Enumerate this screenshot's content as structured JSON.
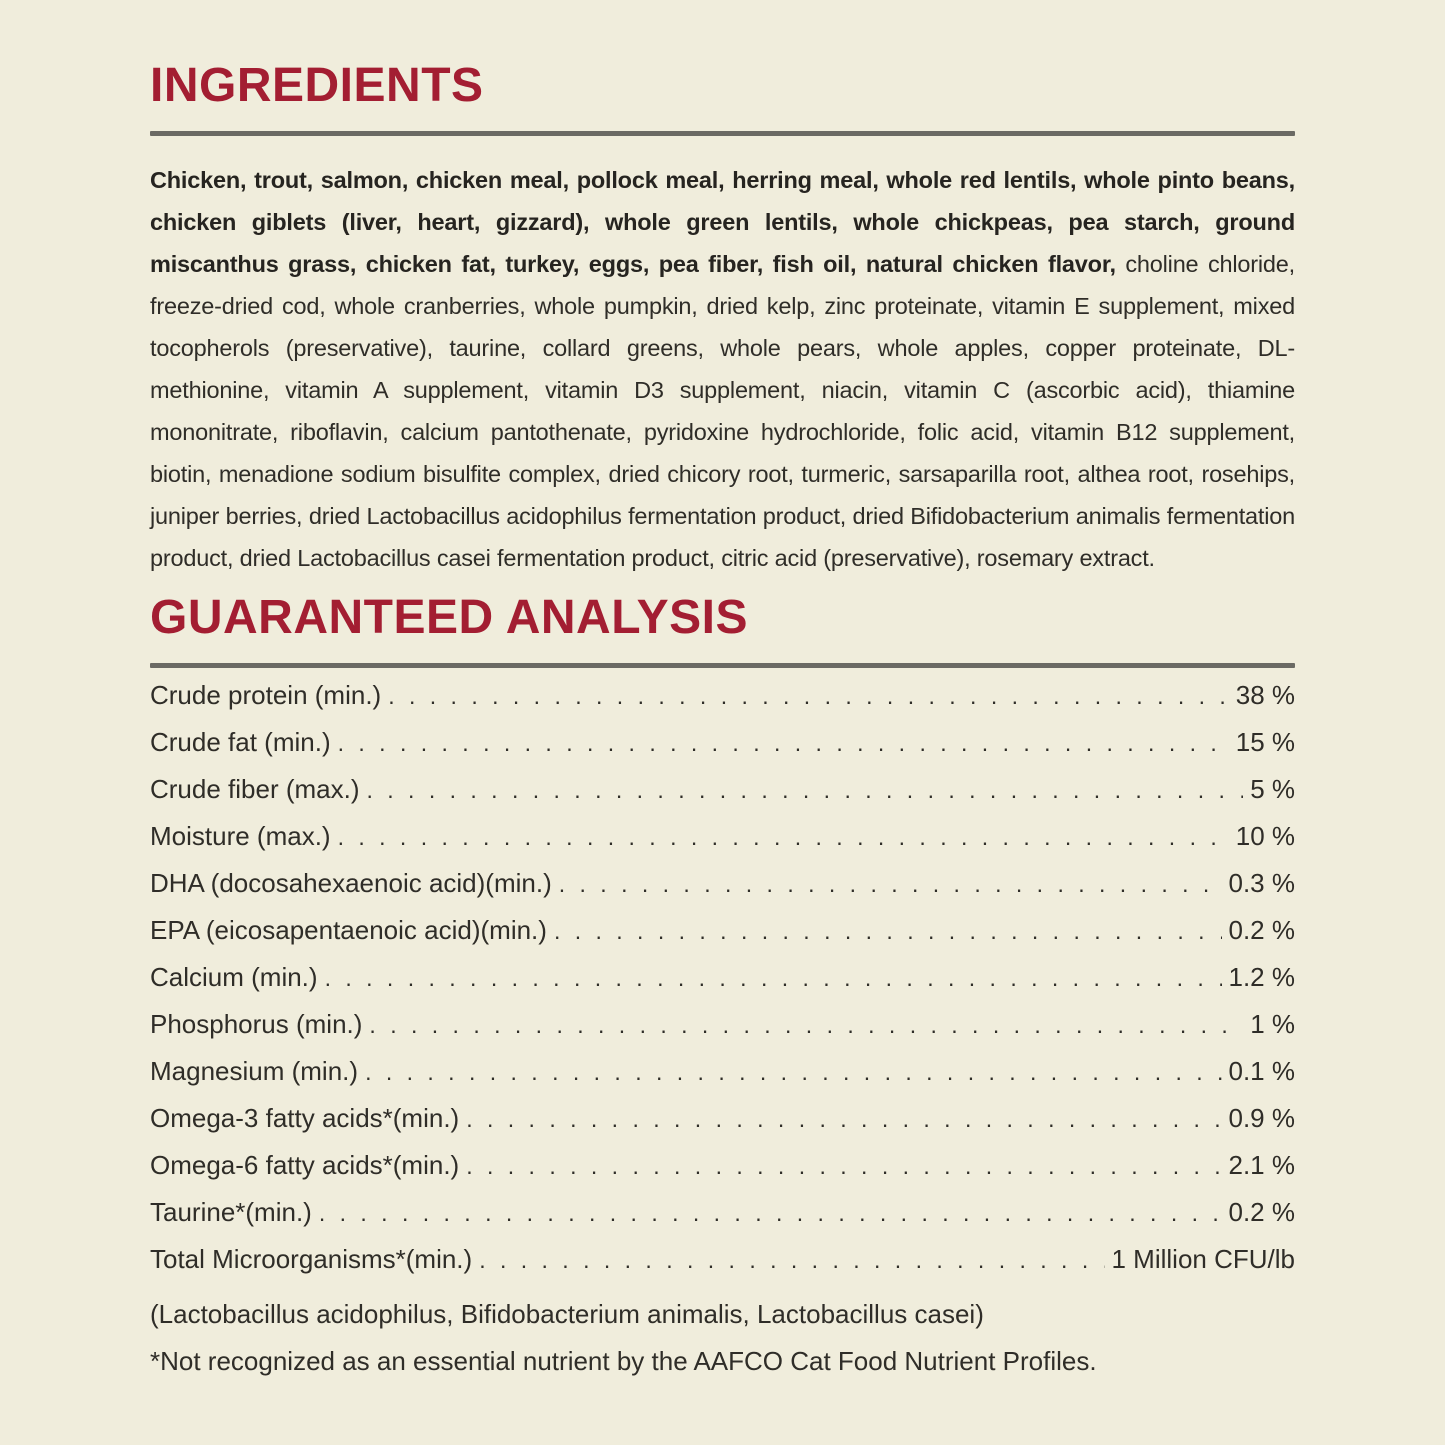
{
  "theme": {
    "bg_color": "#f0eddc",
    "heading_color": "#a31e32",
    "text_color": "#2f2d28",
    "rule_color": "#6b6a64"
  },
  "ingredients": {
    "title": "INGREDIENTS",
    "bold_text": "Chicken, trout, salmon, chicken meal, pollock meal, herring meal, whole red lentils, whole pinto beans, chicken giblets (liver, heart, gizzard), whole green lentils, whole chickpeas, pea starch, ground miscanthus grass, chicken fat, turkey, eggs, pea fiber, fish oil, natural chicken flavor,",
    "regular_text": "choline chloride, freeze-dried cod, whole cranberries, whole pumpkin, dried kelp, zinc proteinate, vitamin E supplement, mixed tocopherols (preservative), taurine, collard greens, whole pears, whole apples, copper proteinate, DL-methionine, vitamin A supplement, vitamin D3 supplement, niacin, vitamin C (ascorbic acid), thiamine mononitrate, riboflavin, calcium pantothenate, pyridoxine hydrochloride, folic acid, vitamin B12 supplement, biotin, menadione sodium bisulfite complex, dried chicory root, turmeric, sarsaparilla root, althea root, rosehips, juniper berries, dried Lactobacillus acidophilus fermentation product, dried Bifidobacterium animalis fermentation product, dried Lactobacillus casei fermentation product, citric acid (preservative), rosemary extract."
  },
  "guaranteed_analysis": {
    "title": "GUARANTEED ANALYSIS",
    "rows": [
      {
        "label": "Crude protein (min.)",
        "value": "38 %"
      },
      {
        "label": "Crude fat (min.)",
        "value": "15 %"
      },
      {
        "label": "Crude fiber (max.)",
        "value": "5 %"
      },
      {
        "label": "Moisture (max.)",
        "value": "10 %"
      },
      {
        "label": "DHA (docosahexaenoic acid)(min.)",
        "value": "0.3 %"
      },
      {
        "label": "EPA (eicosapentaenoic acid)(min.)",
        "value": "0.2 %"
      },
      {
        "label": "Calcium (min.)",
        "value": "1.2 %"
      },
      {
        "label": "Phosphorus (min.)",
        "value": "1 %"
      },
      {
        "label": "Magnesium (min.)",
        "value": "0.1 %"
      },
      {
        "label": "Omega-3 fatty acids*(min.)",
        "value": "0.9 %"
      },
      {
        "label": "Omega-6 fatty acids*(min.)",
        "value": "2.1 %"
      },
      {
        "label": "Taurine*(min.)",
        "value": "0.2 %"
      },
      {
        "label": "Total Microorganisms*(min.)",
        "value": "1 Million CFU/lb"
      }
    ],
    "microorganisms_detail": "(Lactobacillus acidophilus, Bifidobacterium animalis, Lactobacillus casei)",
    "footnote": "*Not recognized as an essential nutrient by the AAFCO Cat Food Nutrient Profiles."
  }
}
